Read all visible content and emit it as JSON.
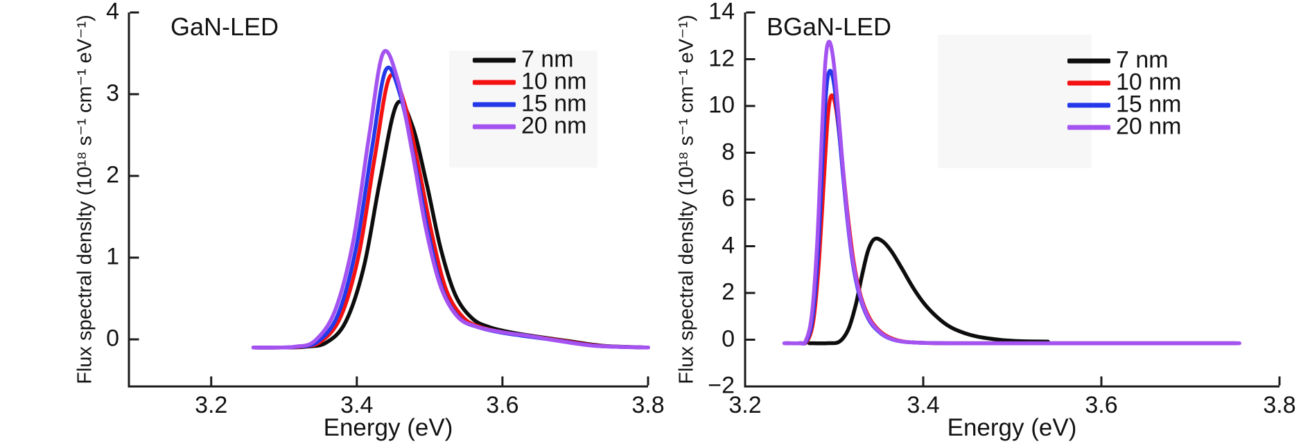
{
  "figure": {
    "background": "#ffffff",
    "axis_color": "#1a1a1a",
    "legend_backdrop_color": "#f7f7f7"
  },
  "chart_data": [
    {
      "type": "line",
      "title": "GaN-LED",
      "xlabel": "Energy (eV)",
      "ylabel": "Flux spectral denslty (10¹⁸ s⁻¹ cm⁻¹ eV⁻¹)",
      "xlim": [
        3.087,
        3.8
      ],
      "ylim": [
        -0.576,
        4
      ],
      "grid": false,
      "legend_position": "upper right",
      "ticks": {
        "x": {
          "values": [
            3.2,
            3.4,
            3.6,
            3.8
          ],
          "labels": [
            "3.2",
            "3.4",
            "3.6",
            "3.8"
          ]
        },
        "y": {
          "values": [
            0,
            1,
            2,
            3,
            4
          ],
          "labels": [
            "0",
            "1",
            "2",
            "3",
            "4"
          ]
        }
      },
      "series": [
        {
          "name": "7 nm",
          "color": "#0d0d0d",
          "peak_x": 3.455,
          "peak_y": 2.88,
          "points": [
            [
              3.258,
              -0.1
            ],
            [
              3.3,
              -0.1
            ],
            [
              3.33,
              -0.09
            ],
            [
              3.358,
              -0.04
            ],
            [
              3.385,
              0.22
            ],
            [
              3.41,
              0.9
            ],
            [
              3.432,
              1.95
            ],
            [
              3.455,
              2.88
            ],
            [
              3.476,
              2.62
            ],
            [
              3.496,
              1.9
            ],
            [
              3.515,
              1.12
            ],
            [
              3.535,
              0.55
            ],
            [
              3.558,
              0.26
            ],
            [
              3.582,
              0.15
            ],
            [
              3.615,
              0.08
            ],
            [
              3.65,
              0.03
            ],
            [
              3.69,
              -0.02
            ],
            [
              3.74,
              -0.08
            ],
            [
              3.8,
              -0.1
            ]
          ]
        },
        {
          "name": "10 nm",
          "color": "#f41112",
          "peak_x": 3.445,
          "peak_y": 3.21,
          "points": [
            [
              3.258,
              -0.1
            ],
            [
              3.295,
              -0.1
            ],
            [
              3.322,
              -0.09
            ],
            [
              3.35,
              -0.03
            ],
            [
              3.378,
              0.28
            ],
            [
              3.403,
              1.05
            ],
            [
              3.425,
              2.25
            ],
            [
              3.445,
              3.21
            ],
            [
              3.465,
              2.9
            ],
            [
              3.485,
              2.1
            ],
            [
              3.504,
              1.25
            ],
            [
              3.523,
              0.6
            ],
            [
              3.546,
              0.27
            ],
            [
              3.57,
              0.15
            ],
            [
              3.605,
              0.08
            ],
            [
              3.645,
              0.03
            ],
            [
              3.685,
              -0.02
            ],
            [
              3.735,
              -0.08
            ],
            [
              3.8,
              -0.1
            ]
          ]
        },
        {
          "name": "15 nm",
          "color": "#2438e9",
          "peak_x": 3.44,
          "peak_y": 3.3,
          "points": [
            [
              3.258,
              -0.1
            ],
            [
              3.292,
              -0.1
            ],
            [
              3.318,
              -0.09
            ],
            [
              3.346,
              -0.03
            ],
            [
              3.374,
              0.3
            ],
            [
              3.399,
              1.12
            ],
            [
              3.421,
              2.35
            ],
            [
              3.44,
              3.3
            ],
            [
              3.46,
              2.98
            ],
            [
              3.48,
              2.15
            ],
            [
              3.499,
              1.27
            ],
            [
              3.518,
              0.6
            ],
            [
              3.541,
              0.26
            ],
            [
              3.566,
              0.15
            ],
            [
              3.6,
              0.08
            ],
            [
              3.64,
              0.03
            ],
            [
              3.68,
              -0.02
            ],
            [
              3.73,
              -0.08
            ],
            [
              3.8,
              -0.1
            ]
          ]
        },
        {
          "name": "20 nm",
          "color": "#a453f0",
          "peak_x": 3.436,
          "peak_y": 3.5,
          "points": [
            [
              3.258,
              -0.1
            ],
            [
              3.29,
              -0.1
            ],
            [
              3.315,
              -0.09
            ],
            [
              3.342,
              -0.02
            ],
            [
              3.37,
              0.35
            ],
            [
              3.395,
              1.2
            ],
            [
              3.417,
              2.5
            ],
            [
              3.436,
              3.5
            ],
            [
              3.456,
              3.18
            ],
            [
              3.476,
              2.3
            ],
            [
              3.495,
              1.35
            ],
            [
              3.515,
              0.65
            ],
            [
              3.538,
              0.28
            ],
            [
              3.563,
              0.16
            ],
            [
              3.598,
              0.09
            ],
            [
              3.638,
              0.04
            ],
            [
              3.678,
              -0.02
            ],
            [
              3.728,
              -0.08
            ],
            [
              3.8,
              -0.1
            ]
          ]
        }
      ]
    },
    {
      "type": "line",
      "title": "BGaN-LED",
      "xlabel": "Energy (eV)",
      "ylabel": "Flux spectral denslty (10¹⁸ s⁻¹ cm⁻¹ eV⁻¹)",
      "xlim": [
        3.2,
        3.8
      ],
      "ylim": [
        -2,
        14
      ],
      "grid": false,
      "legend_position": "upper right",
      "ticks": {
        "x": {
          "values": [
            3.2,
            3.4,
            3.6,
            3.8
          ],
          "labels": [
            "3.2",
            "3.4",
            "3.6",
            "3.8"
          ]
        },
        "y": {
          "values": [
            -2,
            0,
            2,
            4,
            6,
            8,
            10,
            12,
            14
          ],
          "labels": [
            "−2",
            "0",
            "2",
            "4",
            "6",
            "8",
            "10",
            "12",
            "14"
          ]
        }
      },
      "series": [
        {
          "name": "7 nm",
          "color": "#0d0d0d",
          "peak_x": 3.345,
          "peak_y": 4.3,
          "points": [
            [
              3.272,
              -0.15
            ],
            [
              3.292,
              -0.15
            ],
            [
              3.306,
              -0.08
            ],
            [
              3.316,
              0.45
            ],
            [
              3.324,
              1.45
            ],
            [
              3.331,
              2.7
            ],
            [
              3.338,
              3.8
            ],
            [
              3.345,
              4.3
            ],
            [
              3.354,
              4.22
            ],
            [
              3.364,
              3.8
            ],
            [
              3.376,
              3.05
            ],
            [
              3.389,
              2.2
            ],
            [
              3.402,
              1.5
            ],
            [
              3.416,
              0.95
            ],
            [
              3.43,
              0.55
            ],
            [
              3.445,
              0.3
            ],
            [
              3.46,
              0.14
            ],
            [
              3.476,
              0.04
            ],
            [
              3.493,
              -0.03
            ],
            [
              3.515,
              -0.07
            ],
            [
              3.54,
              -0.08
            ]
          ]
        },
        {
          "name": "10 nm",
          "color": "#f41112",
          "peak_x": 3.297,
          "peak_y": 10.45,
          "points": [
            [
              3.246,
              -0.15
            ],
            [
              3.262,
              -0.15
            ],
            [
              3.27,
              -0.05
            ],
            [
              3.277,
              0.9
            ],
            [
              3.283,
              3.4
            ],
            [
              3.289,
              7.2
            ],
            [
              3.293,
              9.6
            ],
            [
              3.297,
              10.45
            ],
            [
              3.302,
              9.9
            ],
            [
              3.308,
              8.0
            ],
            [
              3.315,
              5.4
            ],
            [
              3.322,
              3.3
            ],
            [
              3.33,
              1.85
            ],
            [
              3.34,
              0.9
            ],
            [
              3.351,
              0.38
            ],
            [
              3.363,
              0.08
            ],
            [
              3.378,
              -0.08
            ],
            [
              3.398,
              -0.13
            ],
            [
              3.43,
              -0.15
            ],
            [
              3.55,
              -0.15
            ],
            [
              3.752,
              -0.15
            ]
          ]
        },
        {
          "name": "15 nm",
          "color": "#2438e9",
          "peak_x": 3.295,
          "peak_y": 11.5,
          "points": [
            [
              3.245,
              -0.15
            ],
            [
              3.261,
              -0.15
            ],
            [
              3.269,
              -0.05
            ],
            [
              3.276,
              1.0
            ],
            [
              3.282,
              3.8
            ],
            [
              3.287,
              7.8
            ],
            [
              3.291,
              10.6
            ],
            [
              3.295,
              11.5
            ],
            [
              3.3,
              10.9
            ],
            [
              3.306,
              8.7
            ],
            [
              3.313,
              5.8
            ],
            [
              3.32,
              3.5
            ],
            [
              3.328,
              1.95
            ],
            [
              3.338,
              0.92
            ],
            [
              3.349,
              0.38
            ],
            [
              3.361,
              0.07
            ],
            [
              3.376,
              -0.08
            ],
            [
              3.396,
              -0.13
            ],
            [
              3.43,
              -0.15
            ],
            [
              3.55,
              -0.15
            ],
            [
              3.75,
              -0.15
            ]
          ]
        },
        {
          "name": "20 nm",
          "color": "#a453f0",
          "peak_x": 3.294,
          "peak_y": 12.75,
          "points": [
            [
              3.244,
              -0.15
            ],
            [
              3.26,
              -0.15
            ],
            [
              3.268,
              -0.05
            ],
            [
              3.275,
              1.1
            ],
            [
              3.281,
              4.2
            ],
            [
              3.286,
              8.6
            ],
            [
              3.29,
              11.8
            ],
            [
              3.294,
              12.75
            ],
            [
              3.299,
              12.0
            ],
            [
              3.305,
              9.6
            ],
            [
              3.312,
              6.4
            ],
            [
              3.319,
              3.9
            ],
            [
              3.327,
              2.2
            ],
            [
              3.337,
              1.05
            ],
            [
              3.348,
              0.45
            ],
            [
              3.36,
              0.1
            ],
            [
              3.375,
              -0.07
            ],
            [
              3.395,
              -0.13
            ],
            [
              3.43,
              -0.15
            ],
            [
              3.55,
              -0.15
            ],
            [
              3.755,
              -0.15
            ]
          ]
        }
      ]
    }
  ]
}
